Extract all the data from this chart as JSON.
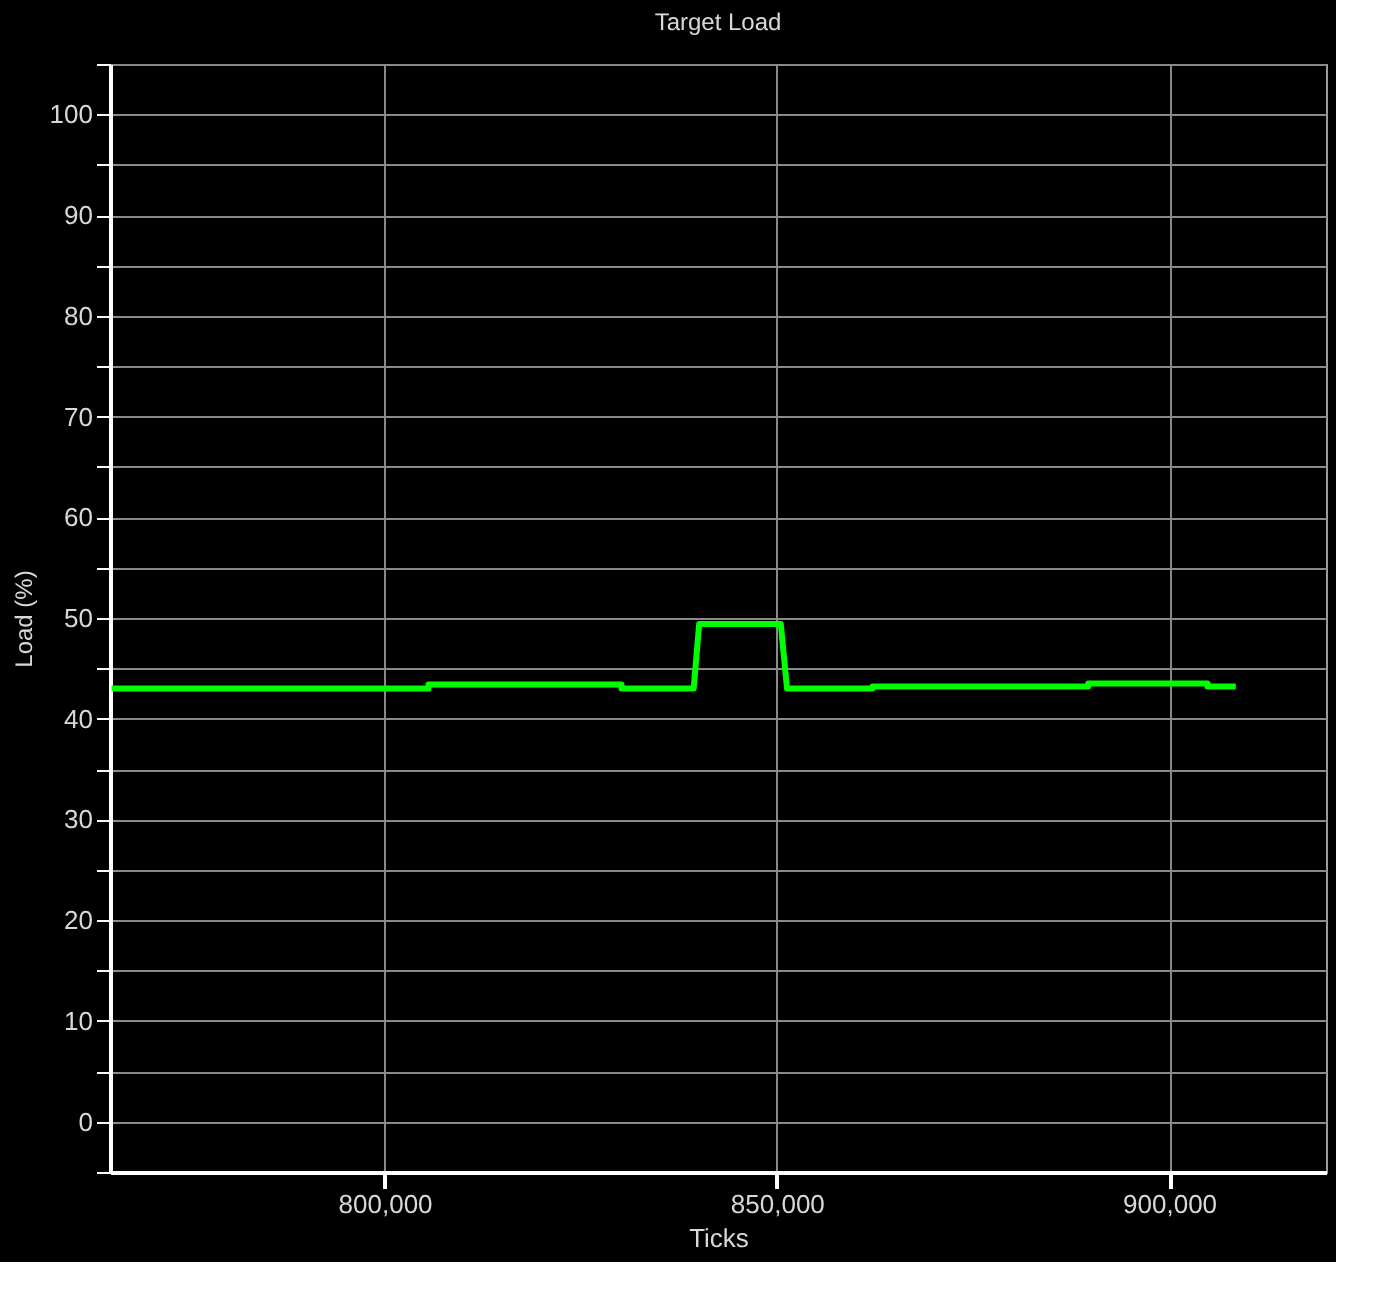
{
  "chart_data": {
    "type": "line",
    "title": "Target Load",
    "xlabel": "Ticks",
    "ylabel": "Load (%)",
    "x": [
      765200,
      805600,
      805600,
      830200,
      830200,
      839400,
      840100,
      850500,
      851300,
      862200,
      862200,
      889700,
      889700,
      904900,
      904900,
      908500
    ],
    "series": [
      {
        "color": "#00ff00",
        "values": [
          43.0,
          43.0,
          43.4,
          43.4,
          43.0,
          43.0,
          49.4,
          49.4,
          43.0,
          43.0,
          43.2,
          43.2,
          43.5,
          43.5,
          43.2,
          43.2
        ]
      }
    ],
    "xlim": [
      765000,
      920000
    ],
    "xticks": [
      {
        "value": 800000,
        "label": "800,000"
      },
      {
        "value": 850000,
        "label": "850,000"
      },
      {
        "value": 900000,
        "label": "900,000"
      }
    ],
    "ylim": [
      -5,
      105
    ],
    "yticks": [
      {
        "value": -5,
        "label": null
      },
      0,
      {
        "value": 5,
        "label": null
      },
      10,
      {
        "value": 15,
        "label": null
      },
      20,
      {
        "value": 25,
        "label": null
      },
      30,
      {
        "value": 35,
        "label": null
      },
      40,
      {
        "value": 45,
        "label": null
      },
      50,
      {
        "value": 55,
        "label": null
      },
      60,
      {
        "value": 65,
        "label": null
      },
      70,
      {
        "value": 75,
        "label": null
      },
      80,
      {
        "value": 85,
        "label": null
      },
      90,
      {
        "value": 95,
        "label": null
      },
      100,
      {
        "value": 105,
        "label": null
      }
    ],
    "grid": true,
    "marker": "none",
    "line_style": "solid"
  }
}
